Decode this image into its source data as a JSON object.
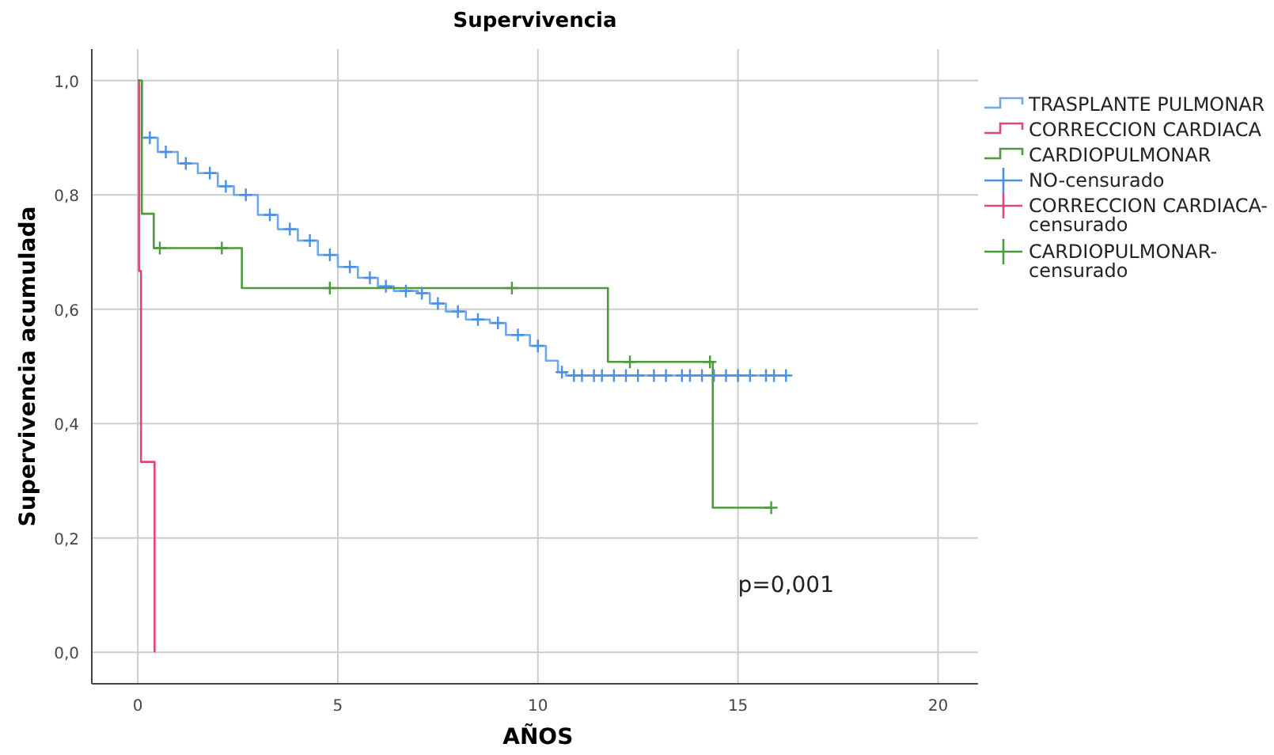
{
  "chart_data": {
    "type": "step",
    "title": "Supervivencia",
    "xlabel": "AÑOS",
    "ylabel": "Supervivencia acumulada",
    "xlim": [
      -1.15,
      21
    ],
    "xticks": [
      0,
      5,
      10,
      15,
      20
    ],
    "ylim": [
      -0.055,
      1.055
    ],
    "yticks": [
      {
        "value": 0,
        "label": "0,0"
      },
      {
        "value": 0.2,
        "label": "0,2"
      },
      {
        "value": 0.4,
        "label": "0,4"
      },
      {
        "value": 0.6,
        "label": "0,6"
      },
      {
        "value": 0.8,
        "label": "0,8"
      },
      {
        "value": 1,
        "label": "1,0"
      }
    ],
    "grid": true,
    "legend": "right",
    "line_style": "solid",
    "annotations": [
      "p=0,001"
    ],
    "series": [
      {
        "name": "TRASPLANTE PULMONAR",
        "color": "#6fa8e8",
        "x": [
          0,
          0.1,
          0.5,
          1,
          1.5,
          2,
          2.4,
          3,
          3.5,
          4,
          4.5,
          5,
          5.5,
          6,
          6.4,
          7,
          7.3,
          7.7,
          8.2,
          8.8,
          9.2,
          9.8,
          10.2,
          10.5,
          10.7,
          16.2
        ],
        "values": [
          1,
          0.9,
          0.875,
          0.855,
          0.838,
          0.815,
          0.8,
          0.765,
          0.74,
          0.72,
          0.695,
          0.674,
          0.655,
          0.64,
          0.632,
          0.628,
          0.61,
          0.596,
          0.582,
          0.576,
          0.555,
          0.536,
          0.51,
          0.49,
          0.484,
          0.484
        ]
      },
      {
        "name": "CORRECCION CARDIACA",
        "color": "#e0457b",
        "x": [
          0,
          0.03,
          0.08,
          0.42
        ],
        "values": [
          1,
          0.667,
          0.333,
          0
        ]
      },
      {
        "name": "CARDIOPULMONAR",
        "color": "#4c9a3c",
        "x": [
          0,
          0.1,
          0.4,
          2.6,
          11.75,
          14.37,
          15.83
        ],
        "values": [
          1,
          0.767,
          0.707,
          0.637,
          0.508,
          0.253,
          0.253
        ]
      },
      {
        "name": "NO-censurado",
        "type": "scatter",
        "marker": "cross",
        "color": "#4a90e2",
        "x": [
          0.3,
          0.7,
          1.2,
          1.8,
          2.2,
          2.7,
          3.3,
          3.8,
          4.3,
          4.8,
          5.3,
          5.8,
          6.2,
          6.7,
          7.1,
          7.5,
          8,
          8.5,
          9,
          9.5,
          10,
          10.6,
          10.9,
          11.1,
          11.4,
          11.6,
          11.9,
          12.2,
          12.5,
          12.9,
          13.2,
          13.6,
          13.8,
          14.1,
          14.4,
          14.7,
          15,
          15.3,
          15.7,
          15.9,
          16.2
        ],
        "values": [
          0.9,
          0.875,
          0.855,
          0.838,
          0.815,
          0.8,
          0.765,
          0.74,
          0.72,
          0.695,
          0.674,
          0.655,
          0.64,
          0.632,
          0.628,
          0.61,
          0.596,
          0.582,
          0.576,
          0.555,
          0.536,
          0.49,
          0.484,
          0.484,
          0.484,
          0.484,
          0.484,
          0.484,
          0.484,
          0.484,
          0.484,
          0.484,
          0.484,
          0.484,
          0.484,
          0.484,
          0.484,
          0.484,
          0.484,
          0.484,
          0.484
        ]
      },
      {
        "name": "CORRECCION CARDIACA-censurado",
        "type": "scatter",
        "marker": "cross",
        "color": "#e0457b"
      },
      {
        "name": "CARDIOPULMONAR-censurado",
        "type": "scatter",
        "marker": "cross",
        "color": "#4c9a3c",
        "x": [
          0.55,
          2.1,
          4.8,
          9.35,
          12.3,
          14.3,
          15.83
        ],
        "values": [
          0.707,
          0.707,
          0.637,
          0.637,
          0.508,
          0.508,
          0.253
        ]
      }
    ]
  }
}
